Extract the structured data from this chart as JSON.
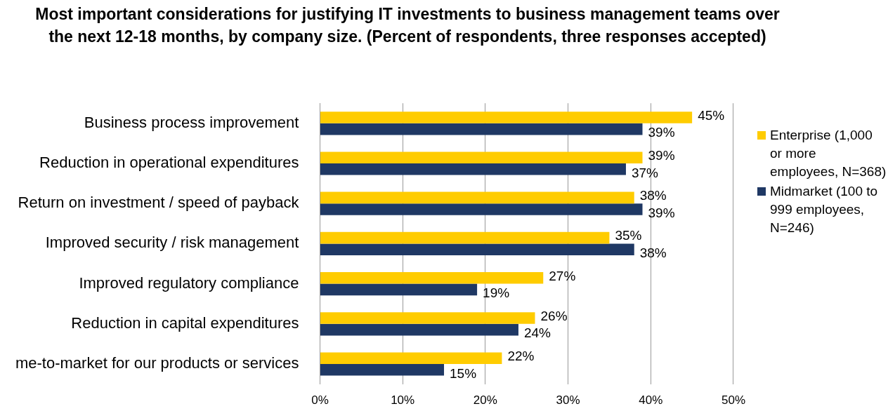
{
  "chart_data": {
    "type": "bar",
    "orientation": "horizontal",
    "title": "Most important considerations for justifying IT investments to business management teams over the next 12-18 months, by company size. (Percent of respondents, three responses accepted)",
    "categories": [
      "Business process improvement",
      "Reduction in operational expenditures",
      "Return on investment / speed of payback",
      "Improved security / risk management",
      "Improved regulatory compliance",
      "Reduction in capital expenditures",
      "me-to-market for our products or services"
    ],
    "series": [
      {
        "name": "Enterprise (1,000 or more employees, N=368)",
        "color": "#ffcc00",
        "values": [
          45,
          39,
          38,
          35,
          27,
          26,
          22
        ],
        "value_labels": [
          "45%",
          "39%",
          "38%",
          "35%",
          "27%",
          "26%",
          "22%"
        ]
      },
      {
        "name": "Midmarket (100 to 999 employees, N=246)",
        "color": "#1f3864",
        "values": [
          39,
          37,
          39,
          38,
          19,
          24,
          15
        ],
        "value_labels": [
          "39%",
          "37%",
          "39%",
          "38%",
          "19%",
          "24%",
          "15%"
        ]
      }
    ],
    "xlim": [
      0,
      50
    ],
    "xticks": [
      {
        "value": 0,
        "label": "0%"
      },
      {
        "value": 10,
        "label": "10%"
      },
      {
        "value": 20,
        "label": "20%"
      },
      {
        "value": 30,
        "label": "30%"
      },
      {
        "value": 40,
        "label": "40%"
      },
      {
        "value": 50,
        "label": "50%"
      }
    ],
    "grid": "x",
    "legend": "right"
  }
}
